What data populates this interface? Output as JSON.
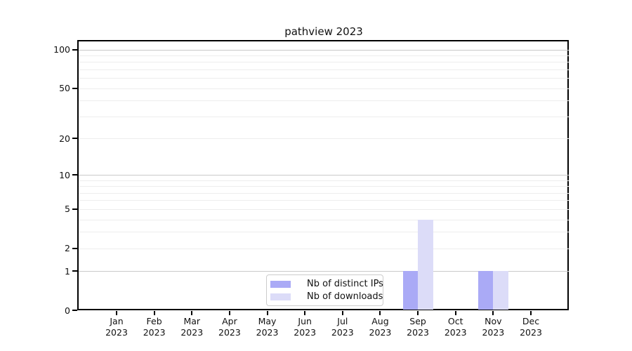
{
  "title": "pathview 2023",
  "chart_data": {
    "type": "bar",
    "title": "pathview 2023",
    "x_months": [
      "Jan",
      "Feb",
      "Mar",
      "Apr",
      "May",
      "Jun",
      "Jul",
      "Aug",
      "Sep",
      "Oct",
      "Nov",
      "Dec"
    ],
    "x_year": "2023",
    "series": [
      {
        "name": "Nb of distinct IPs",
        "color": "#aaaaf6",
        "values": [
          0,
          0,
          0,
          0,
          0,
          0,
          0,
          0,
          1,
          0,
          1,
          0
        ]
      },
      {
        "name": "Nb of downloads",
        "color": "#dcdcf8",
        "values": [
          0,
          0,
          0,
          0,
          0,
          0,
          0,
          0,
          4,
          0,
          1,
          0
        ]
      }
    ],
    "y_ticks": [
      0,
      1,
      2,
      5,
      10,
      20,
      50,
      100
    ],
    "y_scale": "log10(value+1)",
    "y_max": 117,
    "grid": {
      "major_values": [
        1,
        10,
        100
      ],
      "minor_values": [
        2,
        3,
        4,
        5,
        6,
        7,
        8,
        9,
        20,
        30,
        40,
        50,
        60,
        70,
        80,
        90
      ],
      "major_color": "#c9c9c9",
      "minor_color": "#ededed"
    },
    "legend": {
      "position": "lower center",
      "entries": [
        "Nb of distinct IPs",
        "Nb of downloads"
      ]
    }
  }
}
